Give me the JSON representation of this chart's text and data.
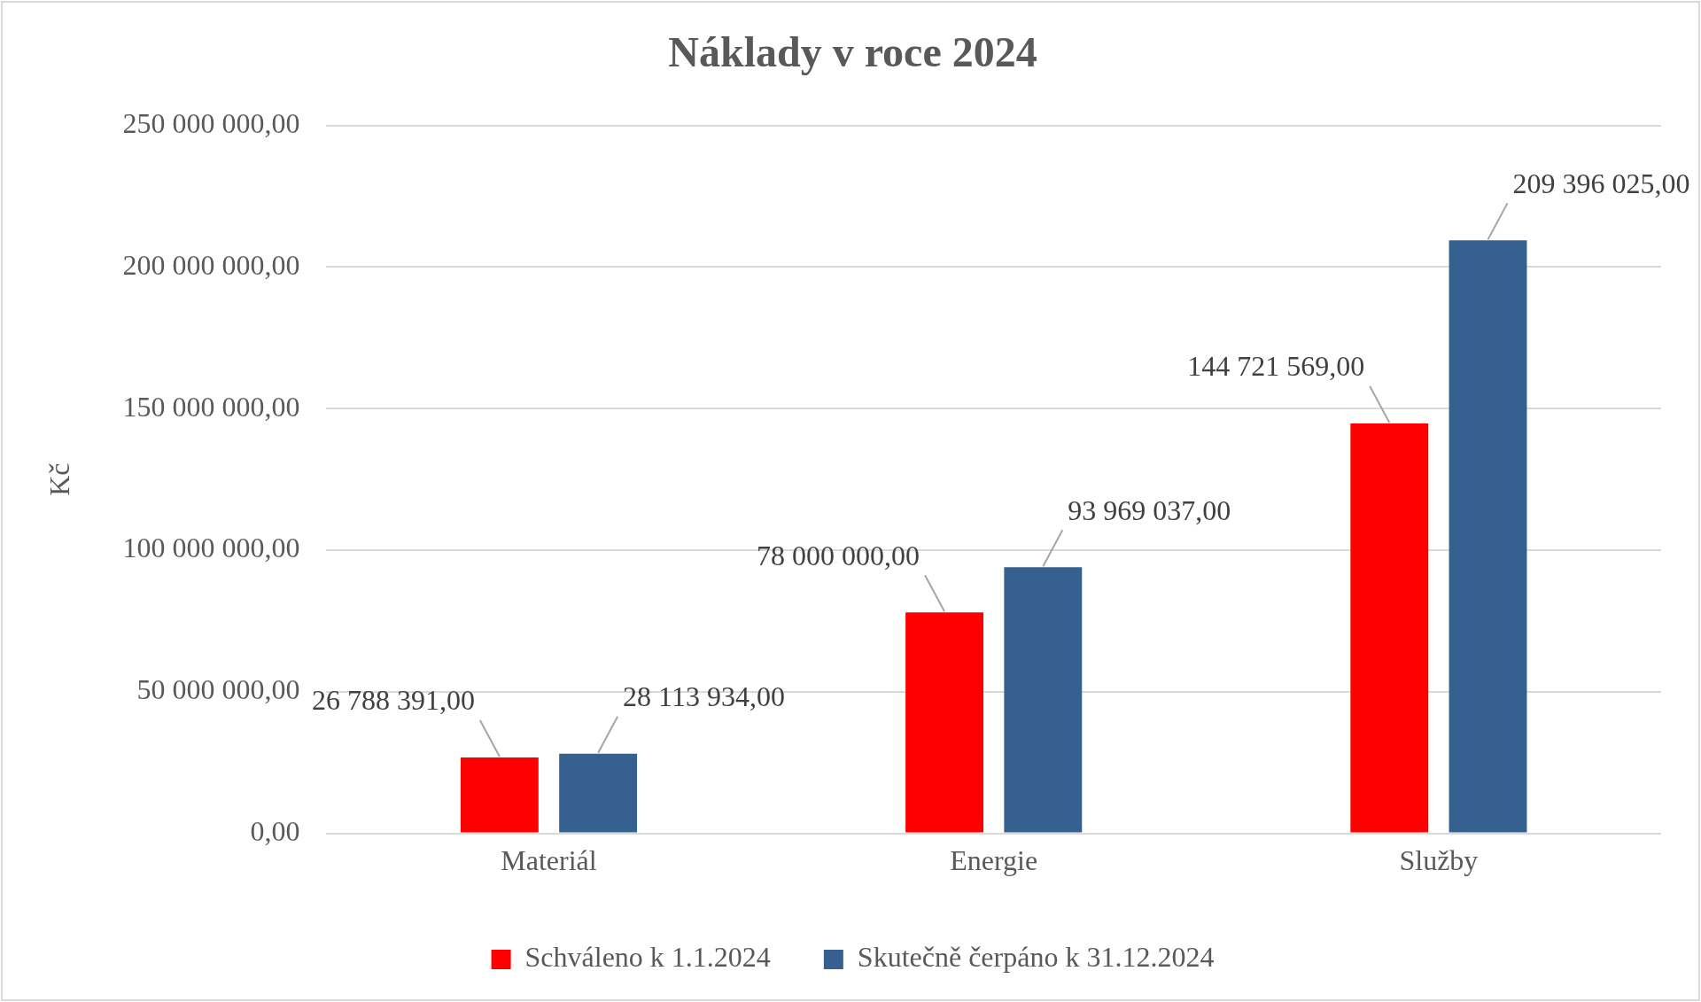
{
  "chart_data": {
    "type": "bar",
    "title": "Náklady v roce 2024",
    "ylabel": "Kč",
    "categories": [
      "Materiál",
      "Energie",
      "Služby"
    ],
    "series": [
      {
        "name": "Schváleno k 1.1.2024",
        "color": "#ff0000",
        "values": [
          26788391,
          78000000,
          144721569
        ],
        "value_labels": [
          "26 788 391,00",
          "78 000 000,00",
          "144 721 569,00"
        ]
      },
      {
        "name": "Skutečně čerpáno k 31.12.2024",
        "color": "#36608f",
        "values": [
          28113934,
          93969037,
          209396025
        ],
        "value_labels": [
          "28 113 934,00",
          "93 969 037,00",
          "209 396 025,00"
        ]
      }
    ],
    "ylim": [
      0,
      250000000
    ],
    "yticks": [
      {
        "value": 0,
        "label": "0,00"
      },
      {
        "value": 50000000,
        "label": "50 000 000,00"
      },
      {
        "value": 100000000,
        "label": "100 000 000,00"
      },
      {
        "value": 150000000,
        "label": "150 000 000,00"
      },
      {
        "value": 200000000,
        "label": "200 000 000,00"
      },
      {
        "value": 250000000,
        "label": "250 000 000,00"
      }
    ],
    "grid": "y",
    "legend": "bottom"
  }
}
